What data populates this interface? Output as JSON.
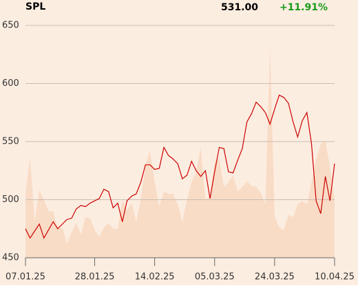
{
  "chart_data": {
    "type": "line",
    "title": "SPL",
    "last_price": "531.00",
    "change": "+11.91%",
    "categories": [
      "07.01.25",
      null,
      null,
      null,
      null,
      null,
      null,
      null,
      null,
      null,
      null,
      null,
      null,
      null,
      null,
      "28.01.25",
      null,
      null,
      null,
      null,
      null,
      null,
      null,
      null,
      null,
      null,
      null,
      null,
      "14.02.25",
      null,
      null,
      null,
      null,
      null,
      null,
      null,
      null,
      null,
      null,
      null,
      null,
      "05.03.25",
      null,
      null,
      null,
      null,
      null,
      null,
      null,
      null,
      null,
      null,
      null,
      null,
      "24.03.25",
      null,
      null,
      null,
      null,
      null,
      null,
      null,
      null,
      null,
      null,
      null,
      null,
      "10.04.25"
    ],
    "series": [
      {
        "name": "Price",
        "color": "#cc0000",
        "values": [
          475,
          467,
          473,
          479,
          467,
          474,
          481,
          475,
          479,
          483,
          484,
          492,
          495,
          494,
          497,
          499,
          501,
          509,
          507,
          493,
          497,
          481,
          499,
          503,
          505,
          515,
          530,
          530,
          526,
          527,
          545,
          538,
          535,
          531,
          518,
          521,
          533,
          525,
          520,
          525,
          501,
          524,
          545,
          544,
          524,
          523,
          534,
          544,
          567,
          574,
          584,
          580,
          575,
          565,
          578,
          590,
          588,
          583,
          567,
          554,
          568,
          575,
          548,
          499,
          488,
          520,
          499,
          531
        ]
      },
      {
        "name": "Volume",
        "color": "#f9dcc6",
        "values": [
          506,
          537,
          481,
          508,
          500,
          490,
          490,
          475,
          476,
          462,
          472,
          480,
          470,
          485,
          484,
          474,
          468,
          476,
          480,
          475,
          475,
          500,
          491,
          497,
          481,
          500,
          530,
          542,
          515,
          494,
          507,
          505,
          505,
          496,
          481,
          500,
          515,
          524,
          545,
          500,
          503,
          533,
          535,
          511,
          515,
          521,
          507,
          511,
          516,
          512,
          511,
          506,
          496,
          632,
          486,
          476,
          474,
          487,
          485,
          496,
          499,
          496,
          515,
          535,
          548,
          551,
          528,
          500
        ]
      }
    ],
    "ylim": [
      450,
      650
    ],
    "yticks": [
      450,
      500,
      550,
      600,
      650
    ],
    "grid": true,
    "change_color": "#1a9b1a",
    "background": "#fcede1"
  }
}
